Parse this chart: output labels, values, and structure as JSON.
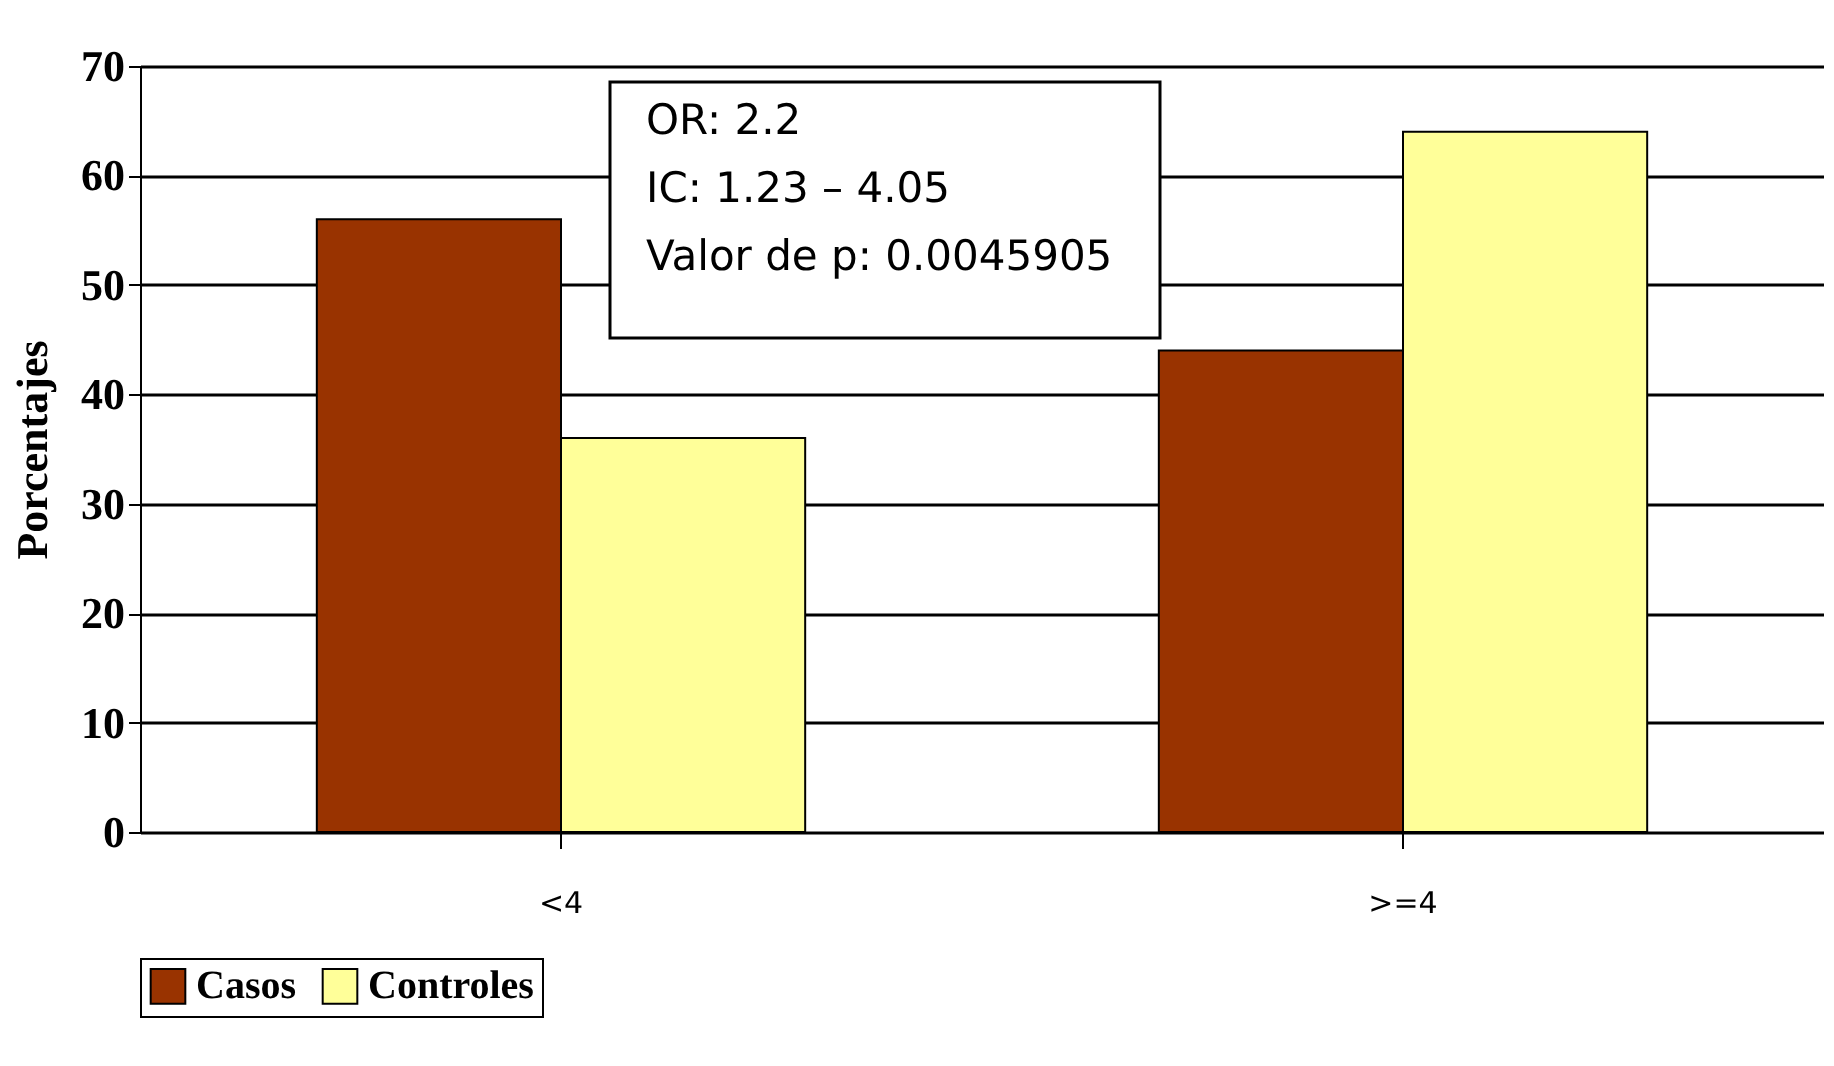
{
  "chart_data": {
    "type": "bar",
    "ylabel": "Porcentajes",
    "categories": [
      "<4",
      ">=4"
    ],
    "series": [
      {
        "name": "Casos",
        "color": "#993300",
        "values": [
          56,
          44
        ]
      },
      {
        "name": "Controles",
        "color": "#ffff99",
        "values": [
          36,
          64
        ]
      }
    ],
    "ylim": [
      0,
      70
    ],
    "yticks": [
      0,
      10,
      20,
      30,
      40,
      50,
      60,
      70
    ],
    "grid": "y",
    "legend": "bottom",
    "annotations": [
      "OR: 2.2",
      "IC: 1.23 – 4.05",
      "Valor de p: 0.0045905"
    ]
  }
}
